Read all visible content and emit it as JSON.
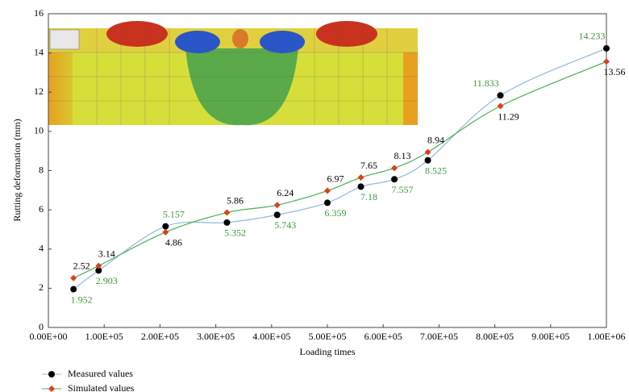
{
  "chart_data": {
    "type": "line",
    "x_label": "Loading times",
    "y_label": "Rutting deformation (mm)",
    "xlim": [
      0,
      1000000
    ],
    "xticks": [
      {
        "value": 0,
        "label": "0.00E+00"
      },
      {
        "value": 100000,
        "label": "1.00E+05"
      },
      {
        "value": 200000,
        "label": "2.00E+05"
      },
      {
        "value": 300000,
        "label": "3.00E+05"
      },
      {
        "value": 400000,
        "label": "4.00E+05"
      },
      {
        "value": 500000,
        "label": "5.00E+05"
      },
      {
        "value": 600000,
        "label": "6.00E+05"
      },
      {
        "value": 700000,
        "label": "7.00E+05"
      },
      {
        "value": 800000,
        "label": "8.00E+05"
      },
      {
        "value": 900000,
        "label": "9.00E+05"
      },
      {
        "value": 1000000,
        "label": "1.00E+06"
      }
    ],
    "ylim": [
      0,
      16
    ],
    "yticks": [
      0,
      2,
      4,
      6,
      8,
      10,
      12,
      14,
      16
    ],
    "series": [
      {
        "name": "Measured values",
        "color": "#8fb8e0",
        "marker_color": "#000000",
        "label_color": "#3a9a3a",
        "x": [
          45000,
          90000,
          210000,
          320000,
          410000,
          500000,
          560000,
          620000,
          680000,
          810000,
          1000000
        ],
        "values": [
          1.952,
          2.903,
          5.157,
          5.352,
          5.743,
          6.359,
          7.18,
          7.557,
          8.525,
          11.833,
          14.233
        ]
      },
      {
        "name": "Simulated values",
        "color": "#4caf50",
        "marker_color": "#d9411e",
        "label_color": "#000000",
        "x": [
          45000,
          90000,
          210000,
          320000,
          410000,
          500000,
          560000,
          620000,
          680000,
          810000,
          1000000
        ],
        "values": [
          2.52,
          3.14,
          4.86,
          5.86,
          6.24,
          6.97,
          7.65,
          8.13,
          8.94,
          11.29,
          13.56
        ]
      }
    ]
  }
}
